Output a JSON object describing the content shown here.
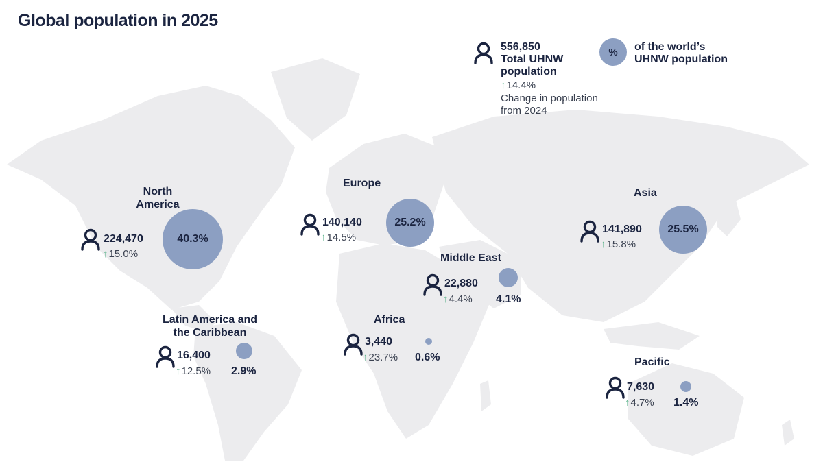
{
  "title": "Global population in 2025",
  "colors": {
    "text": "#1b2440",
    "bubble": "#8c9fc2",
    "arrow_up": "#5fb58e",
    "land": "#ececee"
  },
  "icons": {
    "person": "person-outline-icon",
    "up": "arrow-up-icon"
  },
  "legend": {
    "total_value": "556,850",
    "total_label_line1": "Total UHNW",
    "total_label_line2": "population",
    "change": "14.4%",
    "change_label_line1": "Change in population",
    "change_label_line2": "from 2024",
    "symbol": "%",
    "share_label_line1": "of the world’s",
    "share_label_line2": "UHNW population"
  },
  "regions": {
    "north_america": {
      "name_line1": "North",
      "name_line2": "America",
      "count": "224,470",
      "change": "15.0%",
      "share": "40.3%"
    },
    "europe": {
      "name": "Europe",
      "count": "140,140",
      "change": "14.5%",
      "share": "25.2%"
    },
    "asia": {
      "name": "Asia",
      "count": "141,890",
      "change": "15.8%",
      "share": "25.5%"
    },
    "middle_east": {
      "name": "Middle East",
      "count": "22,880",
      "change": "4.4%",
      "share": "4.1%"
    },
    "latin_america": {
      "name_line1": "Latin America and",
      "name_line2": "the Caribbean",
      "count": "16,400",
      "change": "12.5%",
      "share": "2.9%"
    },
    "africa": {
      "name": "Africa",
      "count": "3,440",
      "change": "23.7%",
      "share": "0.6%"
    },
    "pacific": {
      "name": "Pacific",
      "count": "7,630",
      "change": "4.7%",
      "share": "1.4%"
    }
  }
}
